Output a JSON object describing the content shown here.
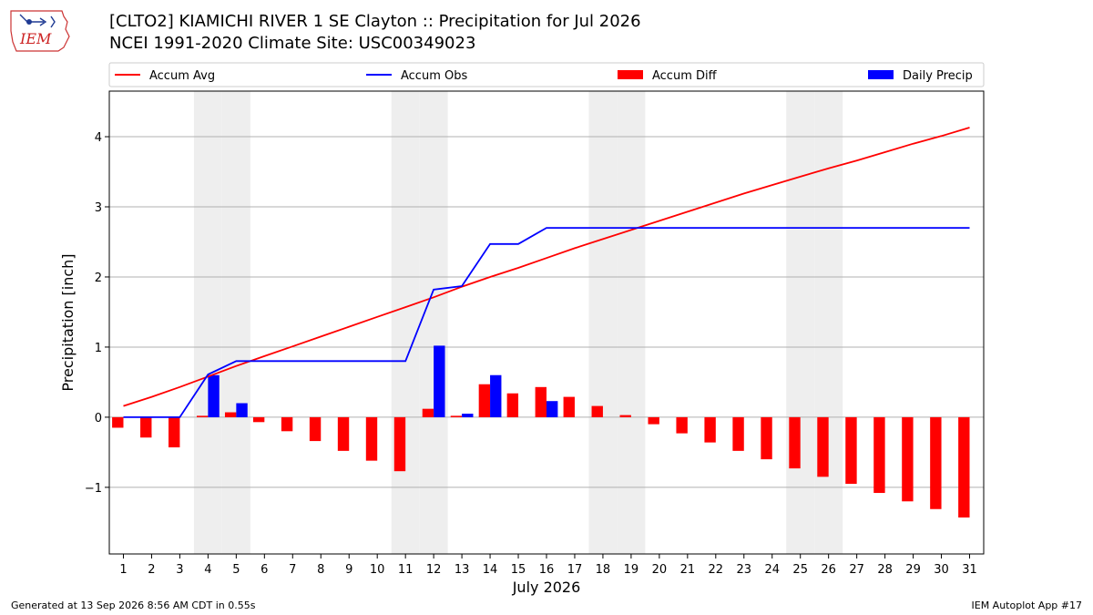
{
  "header": {
    "logo_text": "IEM",
    "title_line1": "[CLTO2] KIAMICHI RIVER 1 SE Clayton :: Precipitation for Jul 2026",
    "title_line2": "NCEI 1991-2020 Climate Site: USC00349023"
  },
  "footer": {
    "left": "Generated at 13 Sep 2026 8:56 AM CDT in 0.55s",
    "right": "IEM Autoplot App #17"
  },
  "colors": {
    "accum_avg": "#ff0000",
    "accum_obs": "#0000ff",
    "accum_diff": "#ff0000",
    "daily_precip": "#0000ff",
    "weekend_shade": "#eeeeee",
    "grid": "#b0b0b0"
  },
  "chart_data": {
    "type": "bar",
    "xlabel": "July 2026",
    "ylabel": "Precipitation [inch]",
    "ylim": [
      -1.95,
      4.65
    ],
    "yticks": [
      -1,
      0,
      1,
      2,
      3,
      4
    ],
    "ytick_labels": [
      "−1",
      "0",
      "1",
      "2",
      "3",
      "4"
    ],
    "grid": "horizontal",
    "legend_position": "top, above plot",
    "weekend_days": [
      4,
      5,
      11,
      12,
      18,
      19,
      25,
      26
    ],
    "days": [
      1,
      2,
      3,
      4,
      5,
      6,
      7,
      8,
      9,
      10,
      11,
      12,
      13,
      14,
      15,
      16,
      17,
      18,
      19,
      20,
      21,
      22,
      23,
      24,
      25,
      26,
      27,
      28,
      29,
      30,
      31
    ],
    "series": [
      {
        "name": "Accum Avg",
        "kind": "line",
        "values": [
          0.16,
          0.29,
          0.43,
          0.58,
          0.73,
          0.87,
          1.01,
          1.15,
          1.29,
          1.43,
          1.57,
          1.71,
          1.86,
          2.0,
          2.13,
          2.27,
          2.41,
          2.54,
          2.67,
          2.8,
          2.93,
          3.06,
          3.19,
          3.31,
          3.43,
          3.55,
          3.66,
          3.78,
          3.9,
          4.01,
          4.13
        ]
      },
      {
        "name": "Accum Obs",
        "kind": "line",
        "values": [
          0.0,
          0.0,
          0.0,
          0.61,
          0.8,
          0.8,
          0.8,
          0.8,
          0.8,
          0.8,
          0.8,
          1.82,
          1.87,
          2.47,
          2.47,
          2.7,
          2.7,
          2.7,
          2.7,
          2.7,
          2.7,
          2.7,
          2.7,
          2.7,
          2.7,
          2.7,
          2.7,
          2.7,
          2.7,
          2.7,
          2.7
        ]
      },
      {
        "name": "Accum Diff",
        "kind": "bar",
        "values": [
          -0.15,
          -0.29,
          -0.43,
          0.02,
          0.07,
          -0.07,
          -0.2,
          -0.34,
          -0.48,
          -0.62,
          -0.77,
          0.12,
          0.02,
          0.47,
          0.34,
          0.43,
          0.29,
          0.16,
          0.03,
          -0.1,
          -0.23,
          -0.36,
          -0.48,
          -0.6,
          -0.73,
          -0.85,
          -0.95,
          -1.08,
          -1.2,
          -1.31,
          -1.43
        ]
      },
      {
        "name": "Daily Precip",
        "kind": "bar",
        "values": [
          0.0,
          0.0,
          0.0,
          0.6,
          0.2,
          0.0,
          0.0,
          0.0,
          0.0,
          0.0,
          0.0,
          1.02,
          0.05,
          0.6,
          0.0,
          0.23,
          0.0,
          0.0,
          0.0,
          0.0,
          0.0,
          0.0,
          0.0,
          0.0,
          0.0,
          0.0,
          0.0,
          0.0,
          0.0,
          0.0,
          0.0
        ]
      }
    ]
  }
}
